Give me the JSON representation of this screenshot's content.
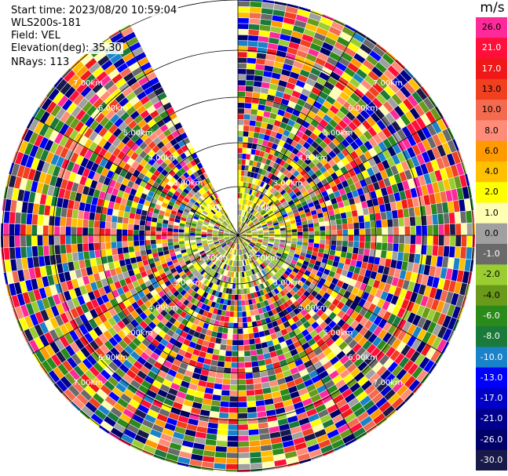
{
  "header": {
    "start_time": "Start time: 2023/08/20 10:59:04",
    "device": "WLS200s-181",
    "field": "Field: VEL",
    "elevation": "Elevation(deg): 35.30",
    "nrays": "NRays: 113"
  },
  "colorbar": {
    "unit": "m/s",
    "ticks": [
      "26.0",
      "21.0",
      "17.0",
      "13.0",
      "10.0",
      "8.0",
      "6.0",
      "4.0",
      "2.0",
      "1.0",
      "0.0",
      "-1.0",
      "-2.0",
      "-4.0",
      "-6.0",
      "-8.0",
      "-10.0",
      "-13.0",
      "-17.0",
      "-21.0",
      "-26.0",
      "-30.0"
    ],
    "colors": [
      "#ff2a9a",
      "#ff0f3a",
      "#f01818",
      "#f04020",
      "#f46a4e",
      "#ff8c78",
      "#ff9a00",
      "#ffc000",
      "#ffff00",
      "#ffffb4",
      "#a0a0a0",
      "#6a6a6a",
      "#9acd32",
      "#6a9a1a",
      "#2a8a1a",
      "#1a7a3a",
      "#1a82c8",
      "#0000ff",
      "#0000c8",
      "#00008c",
      "#00006a",
      "#1a1a4a"
    ]
  },
  "chart_data": {
    "type": "ppi",
    "field": "VEL",
    "unit": "m/s",
    "elevation_deg": 35.3,
    "nrays": 113,
    "ring_labels": [
      "1.70km",
      "3.00km",
      "4.00km",
      "5.00km",
      "6.00km",
      "7.00km"
    ],
    "value_range": [
      -30.0,
      26.0
    ]
  }
}
